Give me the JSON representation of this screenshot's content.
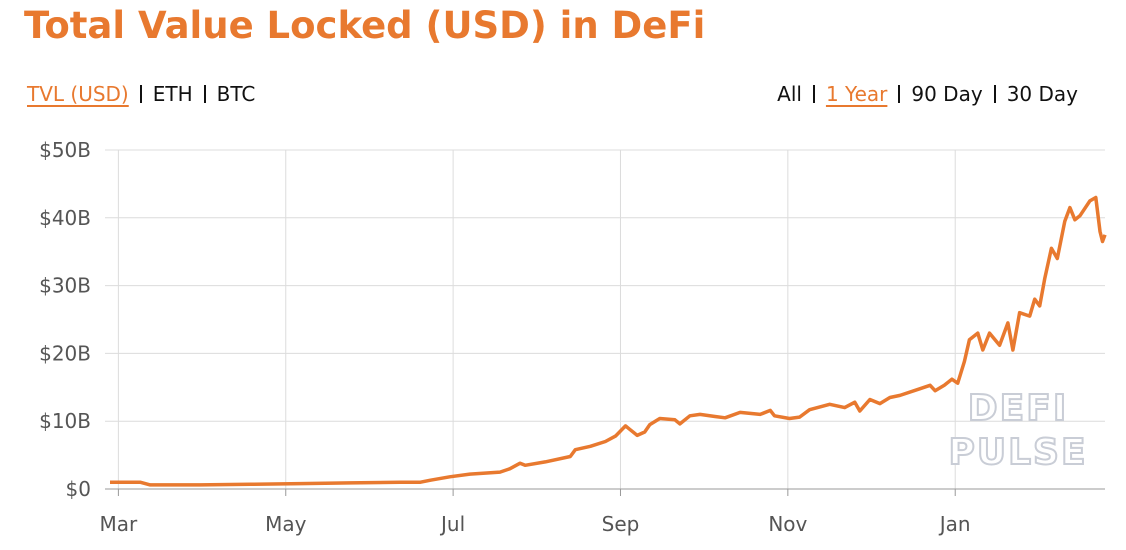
{
  "header": {
    "title": "Total Value Locked (USD) in DeFi"
  },
  "metric_tabs": [
    {
      "label": "TVL (USD)",
      "active": true
    },
    {
      "label": "ETH",
      "active": false
    },
    {
      "label": "BTC",
      "active": false
    }
  ],
  "range_tabs": [
    {
      "label": "All",
      "active": false
    },
    {
      "label": "1 Year",
      "active": true
    },
    {
      "label": "90 Day",
      "active": false
    },
    {
      "label": "30 Day",
      "active": false
    }
  ],
  "watermark": [
    "DEFI",
    "PULSE"
  ],
  "chart_data": {
    "type": "line",
    "color": "#e8792f",
    "grid": true,
    "xlim": [
      -0.16,
      11.79
    ],
    "xticks": [
      {
        "value": 0,
        "label": "Mar"
      },
      {
        "value": 2,
        "label": "May"
      },
      {
        "value": 4,
        "label": "Jul"
      },
      {
        "value": 6,
        "label": "Sep"
      },
      {
        "value": 8,
        "label": "Nov"
      },
      {
        "value": 10,
        "label": "Jan"
      }
    ],
    "ylim": [
      0,
      50
    ],
    "yticks": [
      {
        "value": 0,
        "label": "$0"
      },
      {
        "value": 10,
        "label": "$10B"
      },
      {
        "value": 20,
        "label": "$20B"
      },
      {
        "value": 30,
        "label": "$30B"
      },
      {
        "value": 40,
        "label": "$40B"
      },
      {
        "value": 50,
        "label": "$50B"
      }
    ],
    "x": [
      -0.1,
      0.26,
      0.38,
      0.98,
      1.58,
      2.17,
      2.77,
      3.37,
      3.61,
      3.73,
      3.96,
      4.2,
      4.56,
      4.68,
      4.8,
      4.86,
      5.1,
      5.4,
      5.46,
      5.64,
      5.82,
      5.94,
      6.06,
      6.11,
      6.2,
      6.29,
      6.35,
      6.47,
      6.65,
      6.71,
      6.83,
      6.95,
      7.13,
      7.25,
      7.43,
      7.67,
      7.79,
      7.84,
      8.02,
      8.14,
      8.26,
      8.5,
      8.68,
      8.8,
      8.86,
      8.98,
      9.1,
      9.22,
      9.34,
      9.58,
      9.7,
      9.76,
      9.87,
      9.96,
      10.03,
      10.11,
      10.17,
      10.27,
      10.33,
      10.41,
      10.53,
      10.63,
      10.69,
      10.77,
      10.89,
      10.95,
      11.01,
      11.07,
      11.15,
      11.22,
      11.31,
      11.37,
      11.43,
      11.49,
      11.61,
      11.68,
      11.73,
      11.76,
      11.79
    ],
    "values": [
      1.0,
      1.0,
      0.6,
      0.6,
      0.7,
      0.8,
      0.9,
      1.0,
      1.0,
      1.3,
      1.8,
      2.2,
      2.5,
      3.0,
      3.8,
      3.5,
      4.0,
      4.8,
      5.8,
      6.3,
      7.0,
      7.8,
      9.3,
      8.8,
      7.9,
      8.4,
      9.5,
      10.4,
      10.2,
      9.6,
      10.8,
      11.0,
      10.7,
      10.5,
      11.3,
      11.0,
      11.6,
      10.8,
      10.4,
      10.6,
      11.7,
      12.5,
      12.0,
      12.8,
      11.5,
      13.2,
      12.6,
      13.5,
      13.8,
      14.8,
      15.3,
      14.5,
      15.3,
      16.2,
      15.6,
      18.8,
      22.0,
      23.0,
      20.5,
      23.0,
      21.2,
      24.5,
      20.5,
      26.0,
      25.5,
      28.0,
      27.0,
      31.0,
      35.5,
      34.0,
      39.5,
      41.5,
      39.7,
      40.3,
      42.5,
      43.0,
      38.0,
      36.5,
      37.5
    ]
  }
}
